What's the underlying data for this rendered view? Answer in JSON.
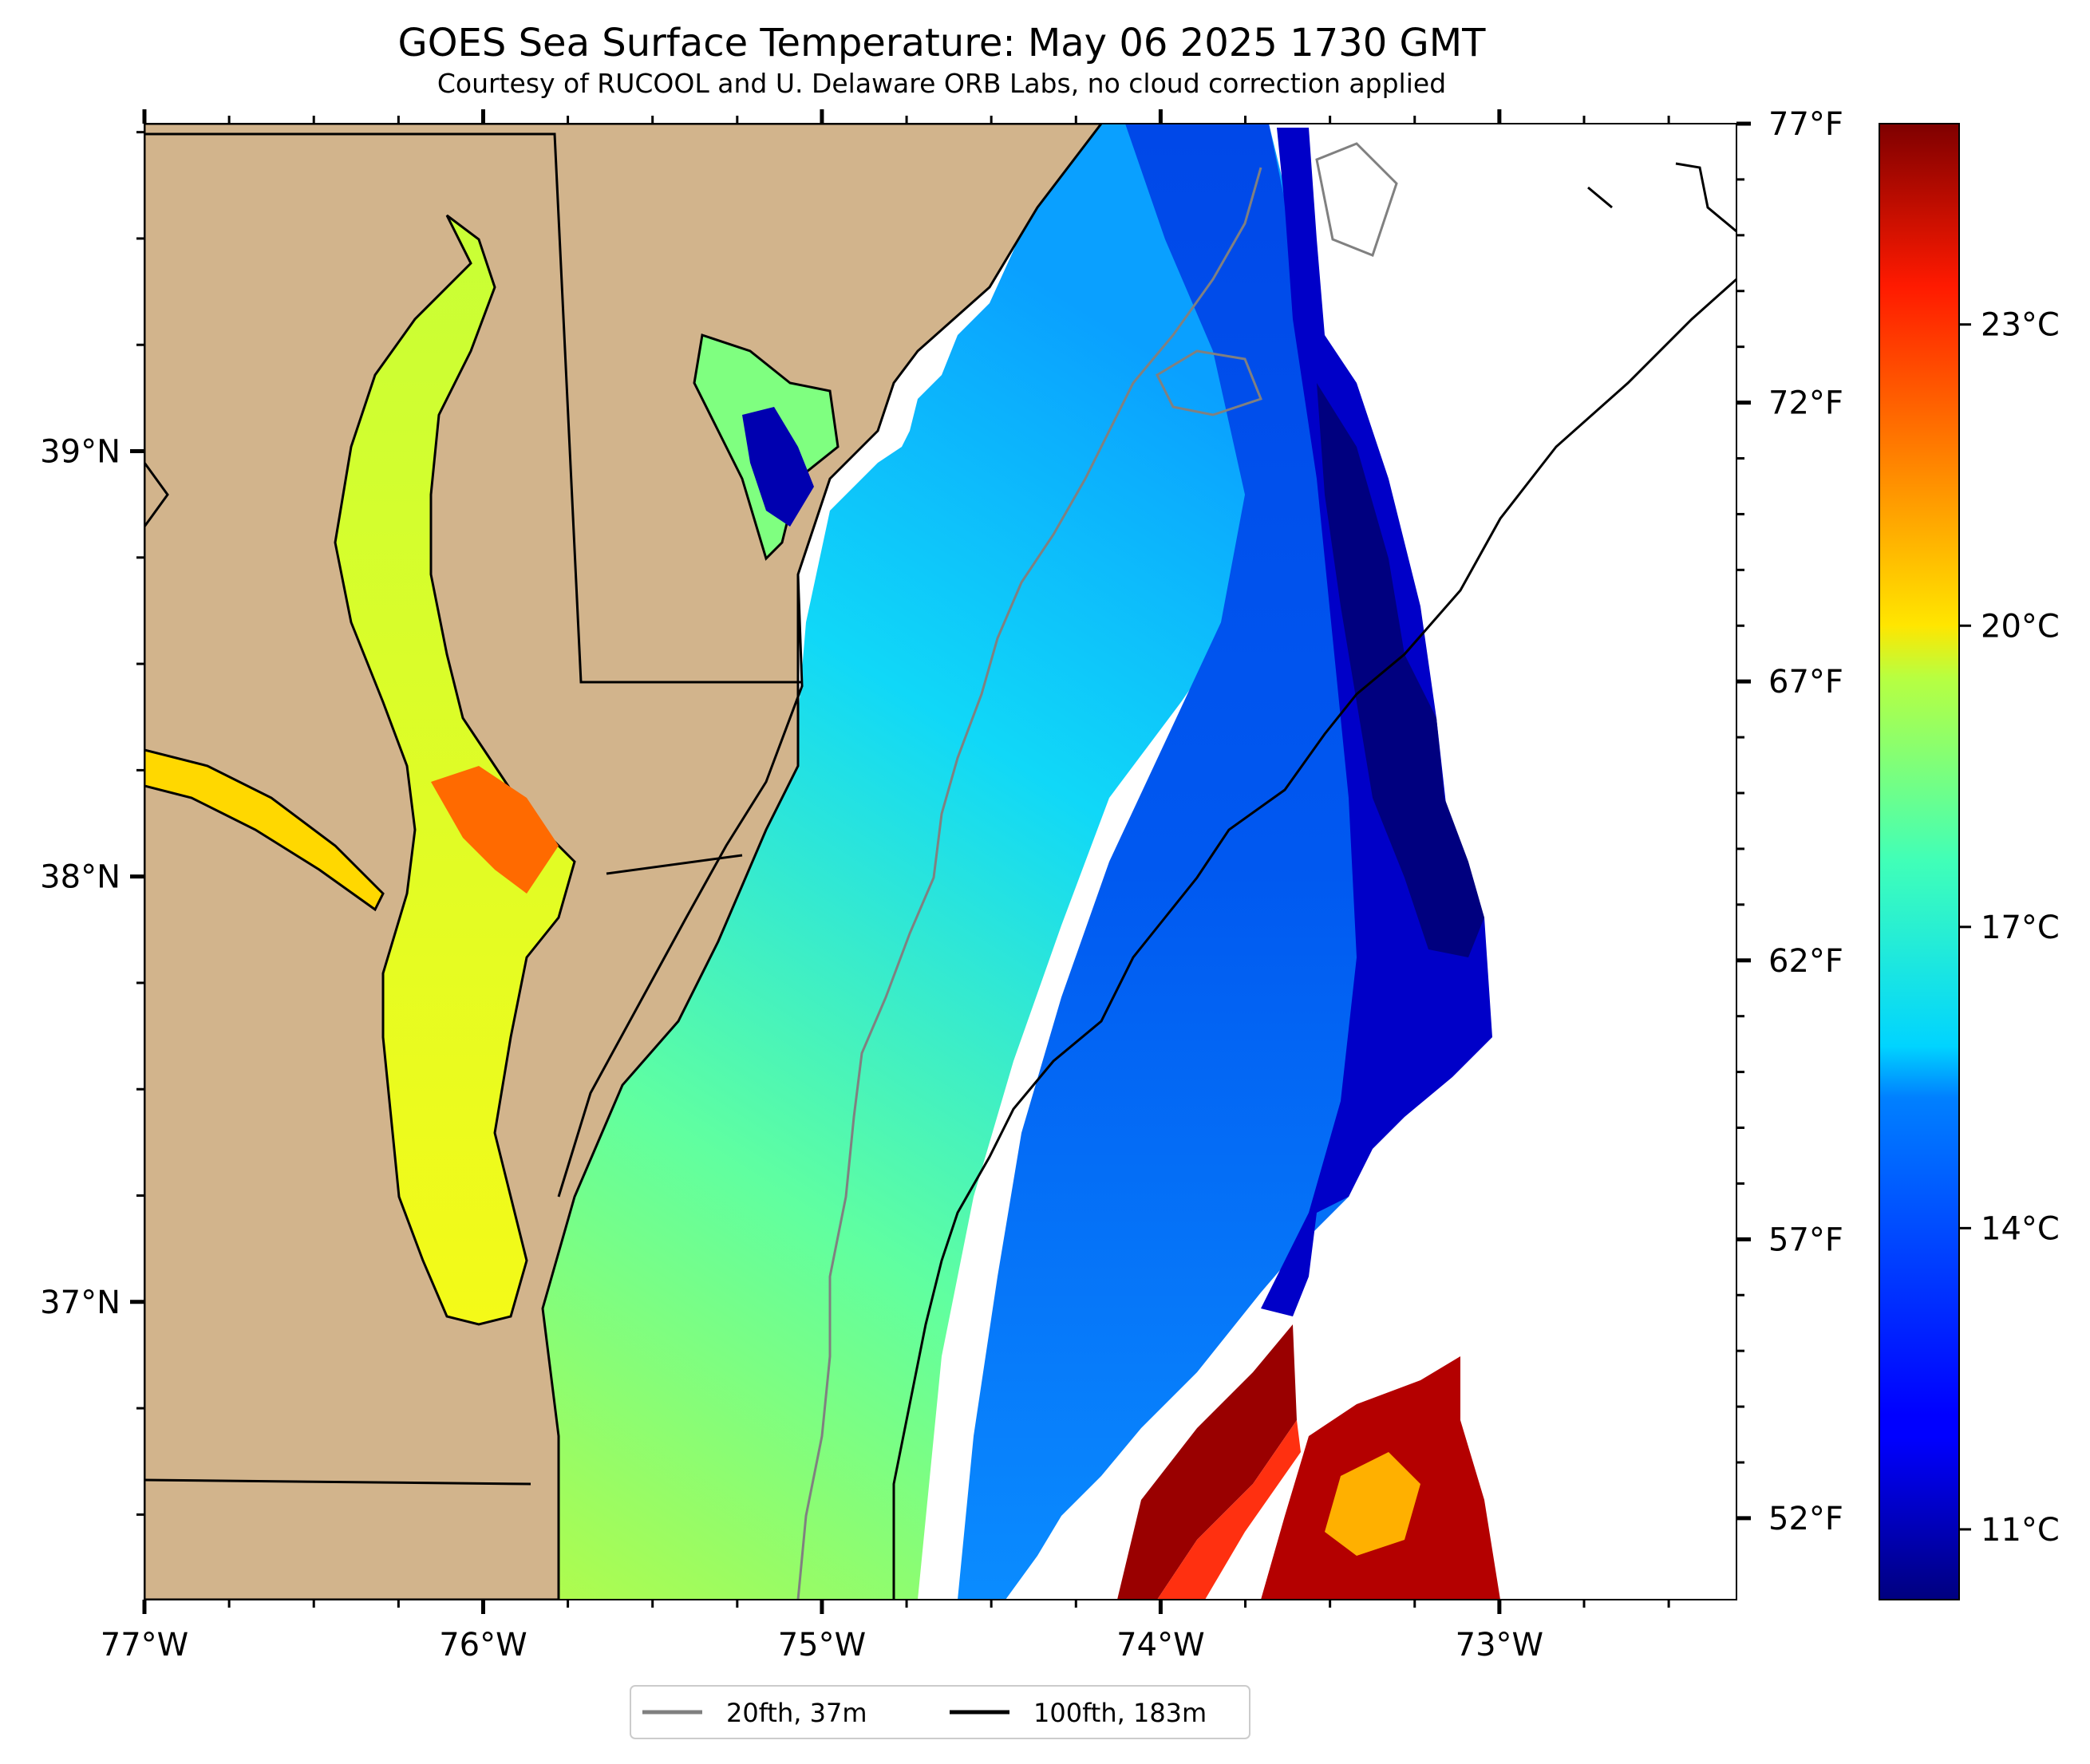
{
  "title": "GOES Sea Surface Temperature: May 06 2025 1730 GMT",
  "subtitle": "Courtesy of RUCOOL and U. Delaware ORB Labs, no cloud correction applied",
  "map": {
    "lon_range": [
      -77.0,
      -72.3
    ],
    "lat_range": [
      36.3,
      39.77
    ],
    "lon_ticks": [
      {
        "value": -77,
        "label": "77°W"
      },
      {
        "value": -76,
        "label": "76°W"
      },
      {
        "value": -75,
        "label": "75°W"
      },
      {
        "value": -74,
        "label": "74°W"
      },
      {
        "value": -73,
        "label": "73°W"
      }
    ],
    "lat_ticks": [
      {
        "value": 39,
        "label": "39°N"
      },
      {
        "value": 38,
        "label": "38°N"
      },
      {
        "value": 37,
        "label": "37°N"
      }
    ],
    "fahrenheit_ticks": [
      {
        "value": 77,
        "label": "77°F"
      },
      {
        "value": 72,
        "label": "72°F"
      },
      {
        "value": 67,
        "label": "67°F"
      },
      {
        "value": 62,
        "label": "62°F"
      },
      {
        "value": 57,
        "label": "57°F"
      },
      {
        "value": 52,
        "label": "52°F"
      }
    ],
    "land_color": "#D2B48C",
    "isobaths": [
      {
        "label": "20fth, 37m",
        "color": "#808080"
      },
      {
        "label": "100fth, 183m",
        "color": "#000000"
      }
    ]
  },
  "colorbar": {
    "colormap": "jet",
    "range_c": [
      10.3,
      25.0
    ],
    "ticks": [
      {
        "value": 11,
        "label": "11°C"
      },
      {
        "value": 14,
        "label": "14°C"
      },
      {
        "value": 17,
        "label": "17°C"
      },
      {
        "value": 20,
        "label": "20°C"
      },
      {
        "value": 23,
        "label": "23°C"
      }
    ]
  }
}
